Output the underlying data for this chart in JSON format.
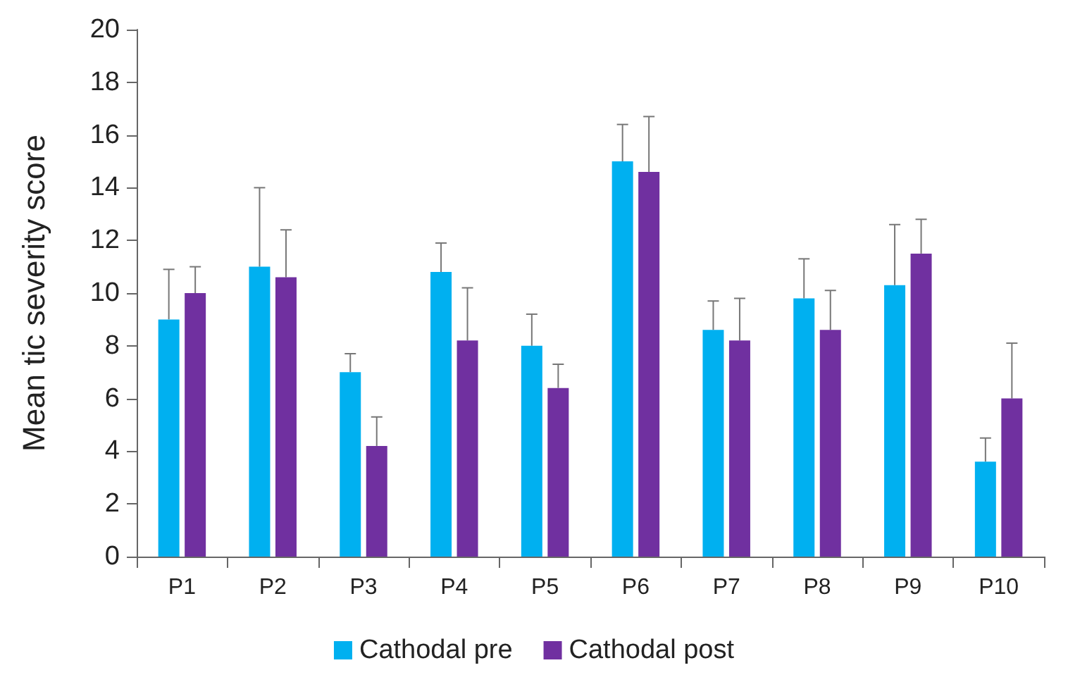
{
  "chart_data": {
    "type": "bar",
    "ylabel": "Mean tic severity score",
    "categories": [
      "P1",
      "P2",
      "P3",
      "P4",
      "P5",
      "P6",
      "P7",
      "P8",
      "P9",
      "P10"
    ],
    "series": [
      {
        "name": "Cathodal pre",
        "color": "#00b0f0",
        "values": [
          9.0,
          11.0,
          7.0,
          10.8,
          8.0,
          15.0,
          8.6,
          9.8,
          10.3,
          3.6
        ],
        "errors": [
          [
            9.0,
            10.9
          ],
          [
            11.0,
            14.0
          ],
          [
            7.0,
            7.7
          ],
          [
            10.8,
            11.9
          ],
          [
            8.0,
            9.2
          ],
          [
            15.0,
            16.4
          ],
          [
            8.6,
            9.7
          ],
          [
            9.8,
            11.3
          ],
          [
            10.3,
            12.6
          ],
          [
            3.6,
            4.5
          ]
        ]
      },
      {
        "name": "Cathodal post",
        "color": "#7030a0",
        "values": [
          10.0,
          10.6,
          4.2,
          8.2,
          6.4,
          14.6,
          8.2,
          8.6,
          11.5,
          6.0
        ],
        "errors": [
          [
            10.0,
            11.0
          ],
          [
            10.6,
            12.4
          ],
          [
            4.2,
            5.3
          ],
          [
            8.2,
            10.2
          ],
          [
            6.4,
            7.3
          ],
          [
            14.6,
            16.7
          ],
          [
            8.2,
            9.8
          ],
          [
            8.6,
            10.1
          ],
          [
            11.5,
            12.8
          ],
          [
            6.0,
            8.1
          ]
        ]
      }
    ],
    "ylim": [
      0,
      20
    ],
    "yticks": [
      0,
      2,
      4,
      6,
      8,
      10,
      12,
      14,
      16,
      18,
      20
    ],
    "grid": false,
    "legend": "bottom"
  }
}
